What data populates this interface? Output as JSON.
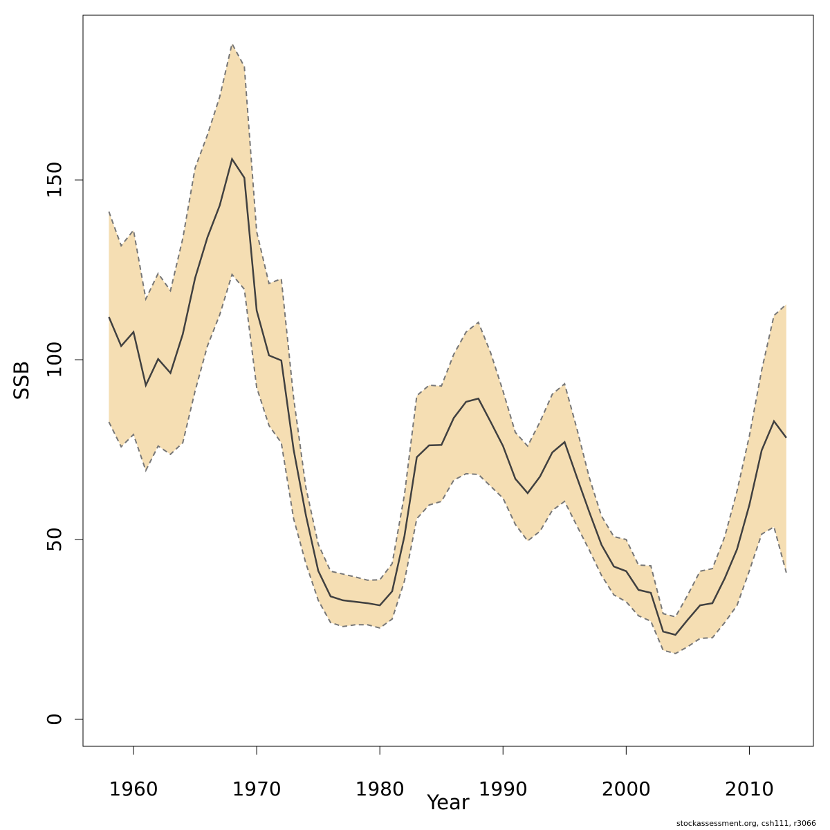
{
  "chart_data": {
    "type": "line",
    "x_label": "Year",
    "y_label": "SSB",
    "x": [
      1958,
      1959,
      1960,
      1961,
      1962,
      1963,
      1964,
      1965,
      1966,
      1967,
      1968,
      1969,
      1970,
      1971,
      1972,
      1973,
      1974,
      1975,
      1976,
      1977,
      1978,
      1979,
      1980,
      1981,
      1982,
      1983,
      1984,
      1985,
      1986,
      1987,
      1988,
      1989,
      1990,
      1991,
      1992,
      1993,
      1994,
      1995,
      1996,
      1997,
      1998,
      1999,
      2000,
      2001,
      2002,
      2003,
      2004,
      2005,
      2006,
      2007,
      2008,
      2009,
      2010,
      2011,
      2012,
      2013
    ],
    "series": [
      {
        "color": "#404040",
        "values": [
          111.9,
          103.8,
          107.7,
          92.9,
          100.2,
          96.3,
          107.1,
          122.7,
          134,
          142.9,
          155.8,
          150.6,
          113.7,
          101.2,
          99.8,
          75,
          56.7,
          41.3,
          34.2,
          33.1,
          32.7,
          32.3,
          31.7,
          35.6,
          51,
          72.9,
          76.2,
          76.3,
          83.8,
          88.3,
          89.2,
          82.7,
          76,
          66.9,
          62.9,
          67.5,
          74.2,
          77.1,
          67.3,
          57.7,
          48.5,
          42.5,
          41.2,
          36,
          35.2,
          24.4,
          23.5,
          27.7,
          31.7,
          32.3,
          39.2,
          47.3,
          59.6,
          74.8,
          82.9,
          78.3
        ]
      }
    ],
    "band": {
      "color": "#f5deb3",
      "edge_color": "#777777",
      "upper": [
        141.2,
        131.7,
        136,
        116.9,
        124,
        119.2,
        133.7,
        153.3,
        162.5,
        173.1,
        187.9,
        181.5,
        135.6,
        121.2,
        122.5,
        89.4,
        64.4,
        48.7,
        41.2,
        40.4,
        39.6,
        38.7,
        38.8,
        43.3,
        62.5,
        90,
        92.9,
        92.7,
        101.5,
        107.7,
        110.4,
        101.9,
        91.3,
        79.8,
        76,
        82.7,
        90.4,
        93.3,
        80.8,
        67.3,
        56.5,
        50.8,
        50,
        42.9,
        42.7,
        29.4,
        28.5,
        34.6,
        41.2,
        41.9,
        50.8,
        63.5,
        78.8,
        97.1,
        112.3,
        115.4
      ],
      "lower": [
        82.7,
        75.8,
        79.2,
        69.2,
        76,
        73.7,
        76.9,
        91.3,
        103.8,
        112.5,
        123.7,
        119.6,
        92.3,
        81.7,
        76.9,
        55.8,
        43.3,
        33.1,
        26.9,
        25.8,
        26.3,
        26.3,
        25.4,
        27.9,
        38.5,
        55.8,
        59.6,
        60.6,
        66.5,
        68.3,
        68.1,
        64.8,
        61.5,
        54.2,
        49.6,
        52.3,
        58.1,
        60.6,
        53.8,
        47.1,
        40,
        34.6,
        32.7,
        28.8,
        27.3,
        19.2,
        18.3,
        20.2,
        22.5,
        22.7,
        26.9,
        31.7,
        41.3,
        51.5,
        53.5,
        40.8
      ]
    },
    "xlim": [
      1955.9,
      2015.2
    ],
    "xticks": [
      1960,
      1970,
      1980,
      1990,
      2000,
      2010
    ],
    "ylim": [
      -7.5,
      195.8
    ],
    "yticks": [
      0,
      50,
      100,
      150
    ]
  },
  "footer": "stockassessment.org, csh111, r3066"
}
